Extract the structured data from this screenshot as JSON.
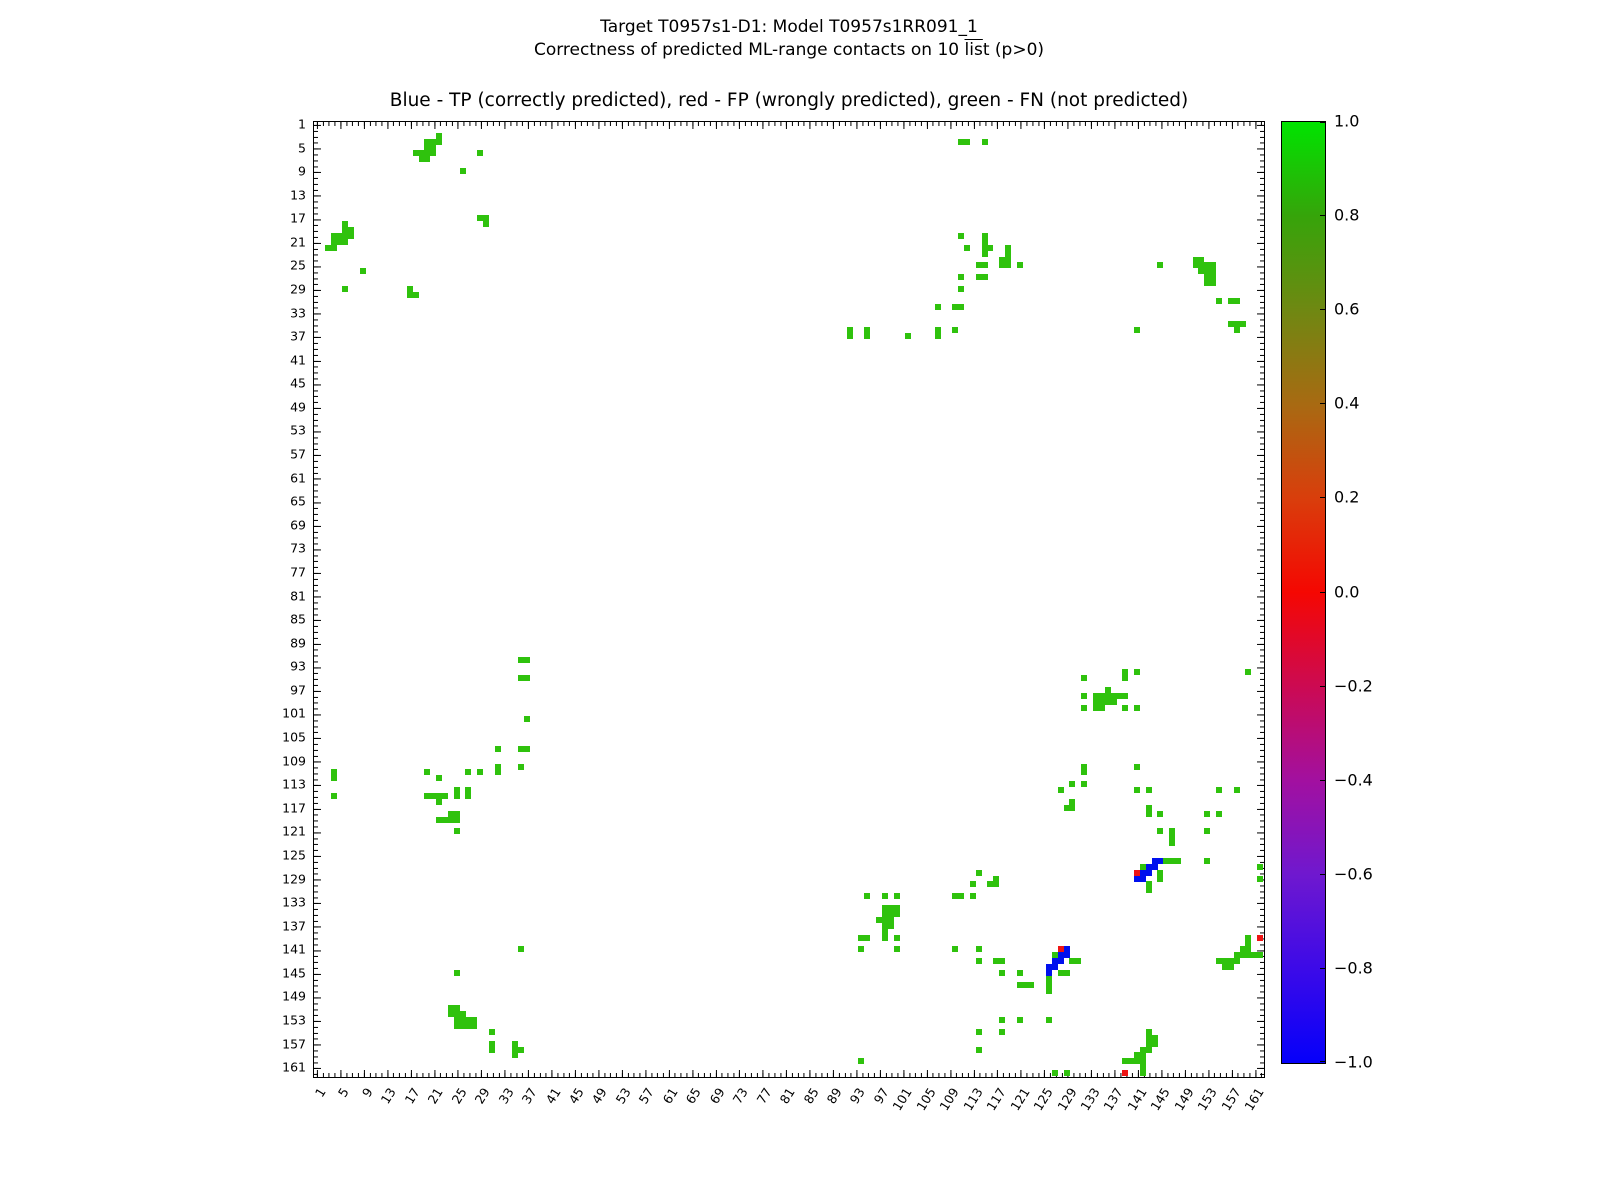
{
  "header": {
    "title_line1": "Target T0957s1-D1: Model T0957s1RR091_1",
    "subtitle_prefix": "Correctness of predicted ML-range contacts on 10 ",
    "subtitle_overline": "lis",
    "subtitle_suffix": "t (p>0)"
  },
  "chart_data": {
    "type": "heatmap",
    "title": "Blue - TP (correctly predicted), red - FP (wrongly predicted), green - FN (not predicted)",
    "xlabel": "",
    "ylabel": "",
    "axis_min": 1,
    "axis_max": 162,
    "grid": false,
    "x_tick_labels": [
      1,
      5,
      9,
      13,
      17,
      21,
      25,
      29,
      33,
      37,
      41,
      45,
      49,
      53,
      57,
      61,
      65,
      69,
      73,
      77,
      81,
      85,
      89,
      93,
      97,
      101,
      105,
      109,
      113,
      117,
      121,
      125,
      129,
      133,
      137,
      141,
      145,
      149,
      153,
      157,
      161
    ],
    "y_tick_labels": [
      1,
      5,
      9,
      13,
      17,
      21,
      25,
      29,
      33,
      37,
      41,
      45,
      49,
      53,
      57,
      61,
      65,
      69,
      73,
      77,
      81,
      85,
      89,
      93,
      97,
      101,
      105,
      109,
      113,
      117,
      121,
      125,
      129,
      133,
      137,
      141,
      145,
      149,
      153,
      157,
      161
    ],
    "colors": {
      "fn": "#2fc20d",
      "tp": "#0010ee",
      "fp": "#ee1414"
    },
    "legend": {
      "tp_label": "TP (correctly predicted)",
      "fp_label": "FP (wrongly predicted)",
      "fn_label": "FN (not predicted)"
    },
    "cells": {
      "fn": [
        [
          22,
          3
        ],
        [
          20,
          4
        ],
        [
          21,
          4
        ],
        [
          22,
          4
        ],
        [
          20,
          5
        ],
        [
          21,
          5
        ],
        [
          18,
          6
        ],
        [
          19,
          6
        ],
        [
          20,
          6
        ],
        [
          21,
          6
        ],
        [
          19,
          7
        ],
        [
          20,
          7
        ],
        [
          3,
          22
        ],
        [
          4,
          20
        ],
        [
          4,
          21
        ],
        [
          4,
          22
        ],
        [
          5,
          20
        ],
        [
          5,
          21
        ],
        [
          6,
          18
        ],
        [
          6,
          19
        ],
        [
          6,
          20
        ],
        [
          6,
          21
        ],
        [
          7,
          19
        ],
        [
          7,
          20
        ],
        [
          29,
          6
        ],
        [
          6,
          29
        ],
        [
          26,
          9
        ],
        [
          9,
          26
        ],
        [
          29,
          17
        ],
        [
          17,
          29
        ],
        [
          30,
          17
        ],
        [
          17,
          30
        ],
        [
          30,
          18
        ],
        [
          18,
          30
        ],
        [
          111,
          4
        ],
        [
          112,
          4
        ],
        [
          115,
          4
        ],
        [
          4,
          111
        ],
        [
          4,
          112
        ],
        [
          4,
          115
        ],
        [
          111,
          20
        ],
        [
          115,
          20
        ],
        [
          115,
          21
        ],
        [
          112,
          22
        ],
        [
          115,
          22
        ],
        [
          116,
          22
        ],
        [
          119,
          22
        ],
        [
          115,
          23
        ],
        [
          119,
          23
        ],
        [
          118,
          24
        ],
        [
          119,
          24
        ],
        [
          114,
          25
        ],
        [
          115,
          25
        ],
        [
          118,
          25
        ],
        [
          119,
          25
        ],
        [
          121,
          25
        ],
        [
          111,
          27
        ],
        [
          114,
          27
        ],
        [
          115,
          27
        ],
        [
          111,
          29
        ],
        [
          107,
          32
        ],
        [
          110,
          32
        ],
        [
          111,
          32
        ],
        [
          20,
          111
        ],
        [
          20,
          115
        ],
        [
          21,
          115
        ],
        [
          22,
          112
        ],
        [
          22,
          115
        ],
        [
          22,
          116
        ],
        [
          22,
          119
        ],
        [
          23,
          115
        ],
        [
          23,
          119
        ],
        [
          24,
          118
        ],
        [
          24,
          119
        ],
        [
          25,
          114
        ],
        [
          25,
          115
        ],
        [
          25,
          118
        ],
        [
          25,
          119
        ],
        [
          25,
          121
        ],
        [
          27,
          111
        ],
        [
          27,
          114
        ],
        [
          27,
          115
        ],
        [
          29,
          111
        ],
        [
          32,
          107
        ],
        [
          32,
          110
        ],
        [
          32,
          111
        ],
        [
          92,
          36
        ],
        [
          92,
          37
        ],
        [
          95,
          36
        ],
        [
          95,
          37
        ],
        [
          102,
          37
        ],
        [
          107,
          36
        ],
        [
          107,
          37
        ],
        [
          110,
          36
        ],
        [
          141,
          36
        ],
        [
          145,
          25
        ],
        [
          36,
          92
        ],
        [
          37,
          92
        ],
        [
          36,
          95
        ],
        [
          37,
          95
        ],
        [
          37,
          102
        ],
        [
          36,
          107
        ],
        [
          37,
          107
        ],
        [
          36,
          110
        ],
        [
          36,
          141
        ],
        [
          25,
          145
        ],
        [
          151,
          24
        ],
        [
          152,
          24
        ],
        [
          151,
          25
        ],
        [
          152,
          25
        ],
        [
          153,
          25
        ],
        [
          154,
          25
        ],
        [
          152,
          26
        ],
        [
          153,
          26
        ],
        [
          154,
          26
        ],
        [
          153,
          27
        ],
        [
          154,
          27
        ],
        [
          153,
          28
        ],
        [
          154,
          28
        ],
        [
          24,
          151
        ],
        [
          24,
          152
        ],
        [
          25,
          151
        ],
        [
          25,
          152
        ],
        [
          25,
          153
        ],
        [
          25,
          154
        ],
        [
          26,
          152
        ],
        [
          26,
          153
        ],
        [
          26,
          154
        ],
        [
          27,
          153
        ],
        [
          27,
          154
        ],
        [
          28,
          153
        ],
        [
          28,
          154
        ],
        [
          155,
          31
        ],
        [
          157,
          31
        ],
        [
          158,
          31
        ],
        [
          31,
          155
        ],
        [
          31,
          157
        ],
        [
          31,
          158
        ],
        [
          157,
          35
        ],
        [
          158,
          35
        ],
        [
          159,
          35
        ],
        [
          158,
          36
        ],
        [
          35,
          157
        ],
        [
          35,
          158
        ],
        [
          35,
          159
        ],
        [
          36,
          158
        ],
        [
          132,
          95
        ],
        [
          132,
          98
        ],
        [
          132,
          100
        ],
        [
          134,
          98
        ],
        [
          134,
          99
        ],
        [
          134,
          100
        ],
        [
          135,
          98
        ],
        [
          135,
          99
        ],
        [
          135,
          100
        ],
        [
          136,
          97
        ],
        [
          136,
          98
        ],
        [
          136,
          99
        ],
        [
          137,
          98
        ],
        [
          137,
          99
        ],
        [
          138,
          98
        ],
        [
          139,
          94
        ],
        [
          139,
          95
        ],
        [
          139,
          98
        ],
        [
          139,
          100
        ],
        [
          141,
          94
        ],
        [
          141,
          100
        ],
        [
          95,
          132
        ],
        [
          98,
          132
        ],
        [
          100,
          132
        ],
        [
          98,
          134
        ],
        [
          99,
          134
        ],
        [
          100,
          134
        ],
        [
          98,
          135
        ],
        [
          99,
          135
        ],
        [
          100,
          135
        ],
        [
          97,
          136
        ],
        [
          98,
          136
        ],
        [
          99,
          136
        ],
        [
          98,
          137
        ],
        [
          99,
          137
        ],
        [
          98,
          138
        ],
        [
          94,
          139
        ],
        [
          95,
          139
        ],
        [
          98,
          139
        ],
        [
          100,
          139
        ],
        [
          94,
          141
        ],
        [
          100,
          141
        ],
        [
          128,
          114
        ],
        [
          129,
          117
        ],
        [
          130,
          113
        ],
        [
          130,
          116
        ],
        [
          130,
          117
        ],
        [
          132,
          110
        ],
        [
          132,
          111
        ],
        [
          132,
          113
        ],
        [
          141,
          110
        ],
        [
          141,
          114
        ],
        [
          143,
          114
        ],
        [
          143,
          117
        ],
        [
          143,
          118
        ],
        [
          145,
          118
        ],
        [
          145,
          121
        ],
        [
          147,
          121
        ],
        [
          147,
          122
        ],
        [
          147,
          123
        ],
        [
          114,
          128
        ],
        [
          117,
          129
        ],
        [
          113,
          130
        ],
        [
          116,
          130
        ],
        [
          117,
          130
        ],
        [
          110,
          132
        ],
        [
          111,
          132
        ],
        [
          113,
          132
        ],
        [
          110,
          141
        ],
        [
          114,
          141
        ],
        [
          114,
          143
        ],
        [
          117,
          143
        ],
        [
          118,
          143
        ],
        [
          118,
          145
        ],
        [
          121,
          145
        ],
        [
          121,
          147
        ],
        [
          122,
          147
        ],
        [
          123,
          147
        ],
        [
          146,
          126
        ],
        [
          147,
          126
        ],
        [
          148,
          126
        ],
        [
          142,
          127
        ],
        [
          145,
          128
        ],
        [
          145,
          129
        ],
        [
          143,
          130
        ],
        [
          143,
          131
        ],
        [
          126,
          146
        ],
        [
          126,
          147
        ],
        [
          126,
          148
        ],
        [
          127,
          142
        ],
        [
          128,
          145
        ],
        [
          129,
          145
        ],
        [
          130,
          143
        ],
        [
          131,
          143
        ],
        [
          160,
          139
        ],
        [
          160,
          140
        ],
        [
          159,
          141
        ],
        [
          160,
          141
        ],
        [
          158,
          142
        ],
        [
          159,
          142
        ],
        [
          160,
          142
        ],
        [
          161,
          142
        ],
        [
          162,
          142
        ],
        [
          155,
          143
        ],
        [
          156,
          143
        ],
        [
          157,
          143
        ],
        [
          158,
          143
        ],
        [
          156,
          144
        ],
        [
          157,
          144
        ],
        [
          139,
          160
        ],
        [
          140,
          160
        ],
        [
          141,
          159
        ],
        [
          141,
          160
        ],
        [
          142,
          158
        ],
        [
          142,
          159
        ],
        [
          142,
          160
        ],
        [
          142,
          161
        ],
        [
          142,
          162
        ],
        [
          143,
          155
        ],
        [
          143,
          156
        ],
        [
          143,
          157
        ],
        [
          143,
          158
        ],
        [
          144,
          156
        ],
        [
          144,
          157
        ],
        [
          160,
          94
        ],
        [
          94,
          160
        ],
        [
          155,
          114
        ],
        [
          114,
          155
        ],
        [
          158,
          114
        ],
        [
          114,
          158
        ],
        [
          153,
          118
        ],
        [
          118,
          153
        ],
        [
          155,
          118
        ],
        [
          118,
          155
        ],
        [
          153,
          121
        ],
        [
          121,
          153
        ],
        [
          153,
          126
        ],
        [
          126,
          153
        ],
        [
          162,
          127
        ],
        [
          127,
          162
        ],
        [
          162,
          129
        ],
        [
          129,
          162
        ]
      ],
      "tp": [
        [
          144,
          126
        ],
        [
          145,
          126
        ],
        [
          143,
          127
        ],
        [
          144,
          127
        ],
        [
          142,
          128
        ],
        [
          143,
          128
        ],
        [
          141,
          129
        ],
        [
          142,
          129
        ],
        [
          126,
          144
        ],
        [
          126,
          145
        ],
        [
          127,
          143
        ],
        [
          127,
          144
        ],
        [
          128,
          142
        ],
        [
          128,
          143
        ],
        [
          129,
          141
        ],
        [
          129,
          142
        ]
      ],
      "fp": [
        [
          141,
          128
        ],
        [
          128,
          141
        ],
        [
          162,
          139
        ],
        [
          139,
          162
        ]
      ]
    },
    "colorbar": {
      "labels": [
        "1.0",
        "0.8",
        "0.6",
        "0.4",
        "0.2",
        "0.0",
        "−0.2",
        "−0.4",
        "−0.6",
        "−0.8",
        "−1.0"
      ],
      "range": [
        1.0,
        -1.0
      ],
      "stops": [
        "#00e400",
        "#36a40a",
        "#6f8812",
        "#a86a12",
        "#d93e0c",
        "#f50702",
        "#cc0a52",
        "#a210a0",
        "#6f18cf",
        "#3c0ae8",
        "#0500fa"
      ]
    }
  }
}
